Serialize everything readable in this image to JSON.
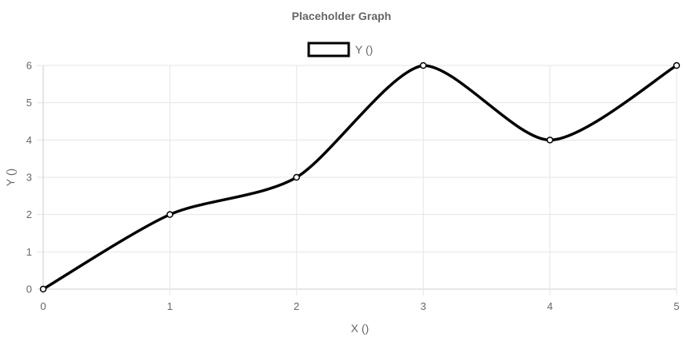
{
  "chart_data": {
    "type": "line",
    "title": "Placeholder Graph",
    "xlabel": "X ()",
    "ylabel": "Y ()",
    "x": [
      0,
      1,
      2,
      3,
      4,
      5
    ],
    "series": [
      {
        "name": "Y ()",
        "values": [
          0,
          2,
          3,
          6,
          4,
          6
        ],
        "color": "#000000"
      }
    ],
    "xlim": [
      0,
      5
    ],
    "ylim": [
      0,
      6
    ],
    "xticks": [
      "0",
      "1",
      "2",
      "3",
      "4",
      "5"
    ],
    "yticks": [
      "0",
      "1",
      "2",
      "3",
      "4",
      "5",
      "6"
    ],
    "grid": true,
    "legend_position": "top-center",
    "curve": "smooth",
    "point_fill": "#ffffff"
  }
}
